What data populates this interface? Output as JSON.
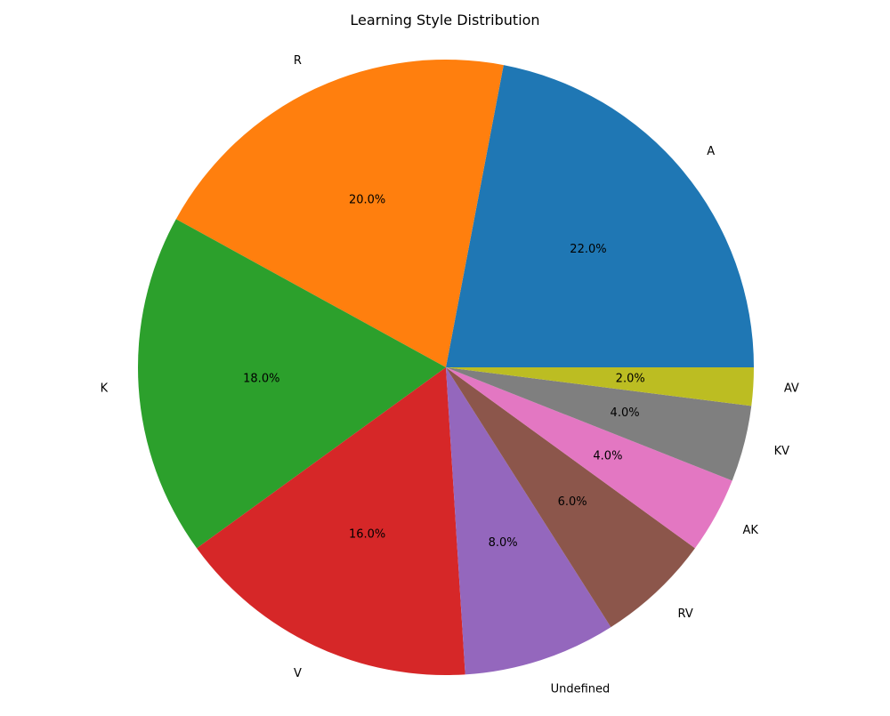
{
  "chart_data": {
    "type": "pie",
    "title": "Learning Style Distribution",
    "start_angle_deg": 0,
    "direction": "counterclockwise",
    "slices": [
      {
        "label": "A",
        "value": 22.0,
        "pct_label": "22.0%",
        "color": "#1f77b4"
      },
      {
        "label": "R",
        "value": 20.0,
        "pct_label": "20.0%",
        "color": "#ff7f0e"
      },
      {
        "label": "K",
        "value": 18.0,
        "pct_label": "18.0%",
        "color": "#2ca02c"
      },
      {
        "label": "V",
        "value": 16.0,
        "pct_label": "16.0%",
        "color": "#d62728"
      },
      {
        "label": "Undefined",
        "value": 8.0,
        "pct_label": "8.0%",
        "color": "#9467bd"
      },
      {
        "label": "RV",
        "value": 6.0,
        "pct_label": "6.0%",
        "color": "#8c564b"
      },
      {
        "label": "AK",
        "value": 4.0,
        "pct_label": "4.0%",
        "color": "#e377c2"
      },
      {
        "label": "KV",
        "value": 4.0,
        "pct_label": "4.0%",
        "color": "#7f7f7f"
      },
      {
        "label": "AV",
        "value": 2.0,
        "pct_label": "2.0%",
        "color": "#bcbd22"
      }
    ]
  }
}
